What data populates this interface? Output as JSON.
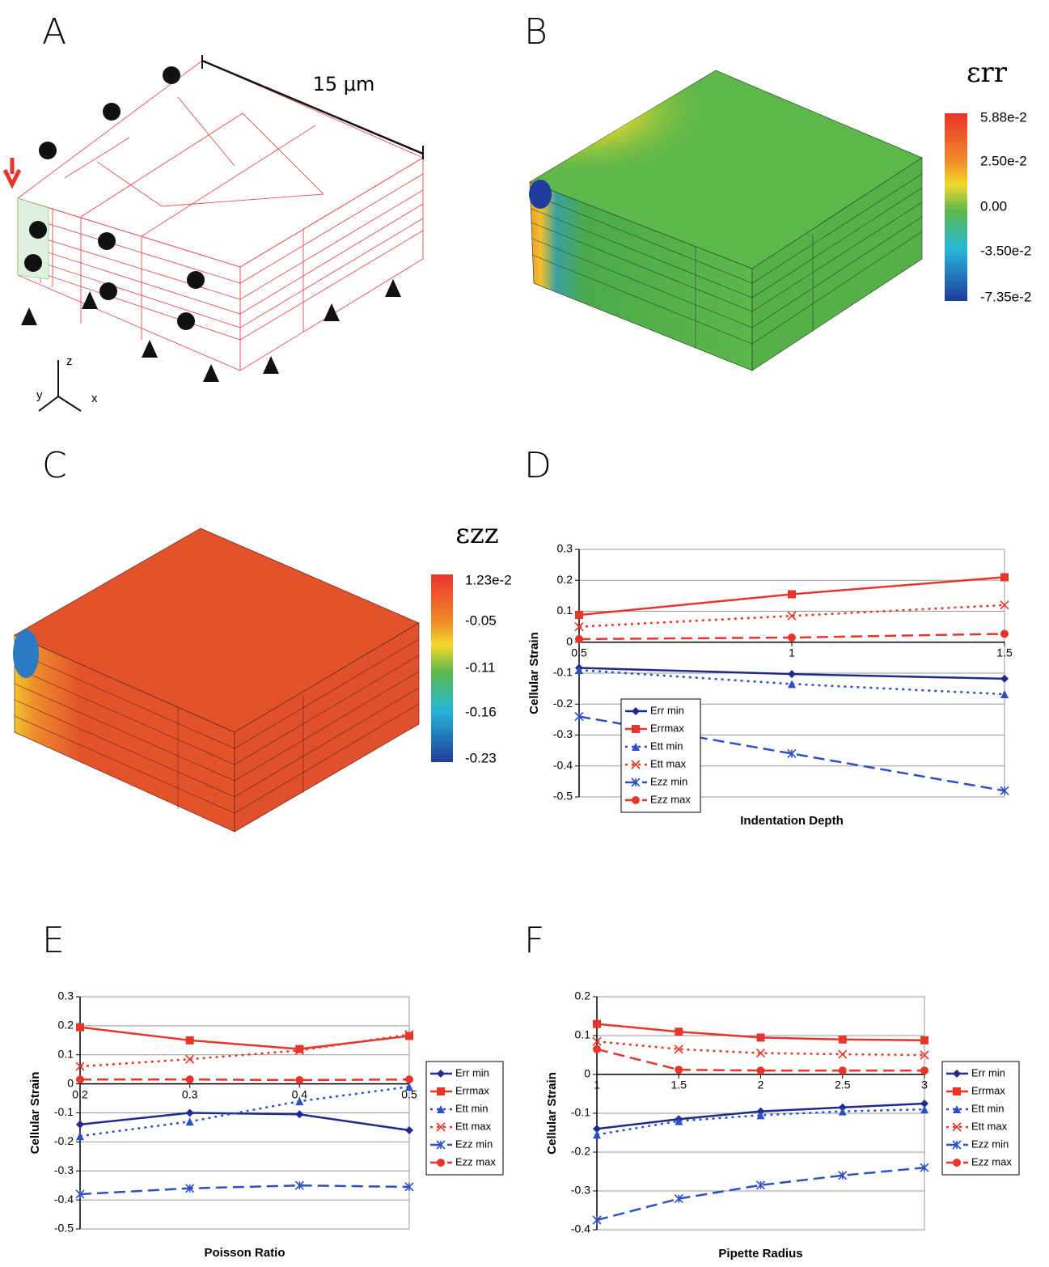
{
  "panels": [
    {
      "label": "A",
      "dimension": "15 μm",
      "axes": [
        "z",
        "y",
        "x"
      ]
    },
    {
      "label": "B",
      "colorbar": {
        "title": "εrr",
        "labels": [
          "5.88e-2",
          "2.50e-2",
          "0.00",
          "-3.50e-2",
          "-7.35e-2"
        ]
      }
    },
    {
      "label": "C",
      "colorbar": {
        "title": "εzz",
        "labels": [
          "1.23e-2",
          "-0.05",
          "-0.11",
          "-0.16",
          "-0.23"
        ]
      }
    }
  ],
  "chart_data": [
    {
      "type": "line",
      "panel_label": "D",
      "x_label": "Indentation Depth",
      "y_label": "Cellular Strain",
      "x": [
        0.5,
        1,
        1.5
      ],
      "xlim": [
        0.5,
        1.5
      ],
      "xticks": [
        0.5,
        1,
        1.5
      ],
      "ylim": [
        -0.5,
        0.3
      ],
      "yticks": [
        -0.5,
        -0.4,
        -0.3,
        -0.2,
        -0.1,
        0,
        0.1,
        0.2,
        0.3
      ],
      "grid": true,
      "legend": "lower left",
      "series": [
        {
          "name": "Err min",
          "color": "#1f2a8c",
          "dash": "solid",
          "marker": "diamond",
          "values": [
            -0.083,
            -0.103,
            -0.118
          ]
        },
        {
          "name": "Errmax",
          "color": "#e8352a",
          "dash": "solid",
          "marker": "square",
          "values": [
            0.088,
            0.155,
            0.21
          ]
        },
        {
          "name": "Ett min",
          "color": "#2d4fc4",
          "dash": "dot",
          "marker": "triangle",
          "values": [
            -0.09,
            -0.135,
            -0.168
          ]
        },
        {
          "name": "Ett max",
          "color": "#e8352a",
          "dash": "dot",
          "marker": "x",
          "values": [
            0.05,
            0.085,
            0.12
          ]
        },
        {
          "name": "Ezz min",
          "color": "#2d4fc4",
          "dash": "dash",
          "marker": "star",
          "values": [
            -0.24,
            -0.36,
            -0.48
          ]
        },
        {
          "name": "Ezz max",
          "color": "#e8352a",
          "dash": "dash",
          "marker": "circle",
          "values": [
            0.01,
            0.015,
            0.027
          ]
        }
      ]
    },
    {
      "type": "line",
      "panel_label": "E",
      "x_label": "Poisson Ratio",
      "y_label": "Cellular Strain",
      "x": [
        0.2,
        0.3,
        0.4,
        0.5
      ],
      "xlim": [
        0.2,
        0.5
      ],
      "xticks": [
        0.2,
        0.3,
        0.4,
        0.5
      ],
      "ylim": [
        -0.5,
        0.3
      ],
      "yticks": [
        -0.5,
        -0.4,
        -0.3,
        -0.2,
        -0.1,
        0,
        0.1,
        0.2,
        0.3
      ],
      "grid": true,
      "legend": "right",
      "series": [
        {
          "name": "Err min",
          "color": "#1f2a8c",
          "dash": "solid",
          "marker": "diamond",
          "values": [
            -0.14,
            -0.1,
            -0.105,
            -0.16
          ]
        },
        {
          "name": "Errmax",
          "color": "#e8352a",
          "dash": "solid",
          "marker": "square",
          "values": [
            0.195,
            0.15,
            0.12,
            0.165
          ]
        },
        {
          "name": "Ett min",
          "color": "#2d4fc4",
          "dash": "dot",
          "marker": "triangle",
          "values": [
            -0.18,
            -0.13,
            -0.06,
            -0.01
          ]
        },
        {
          "name": "Ett max",
          "color": "#e8352a",
          "dash": "dot",
          "marker": "x",
          "values": [
            0.06,
            0.085,
            0.115,
            0.17
          ]
        },
        {
          "name": "Ezz min",
          "color": "#2d4fc4",
          "dash": "dash",
          "marker": "star",
          "values": [
            -0.38,
            -0.36,
            -0.35,
            -0.355
          ]
        },
        {
          "name": "Ezz max",
          "color": "#e8352a",
          "dash": "dash",
          "marker": "circle",
          "values": [
            0.015,
            0.015,
            0.013,
            0.015
          ]
        }
      ]
    },
    {
      "type": "line",
      "panel_label": "F",
      "x_label": "Pipette Radius",
      "y_label": "Cellular Strain",
      "x": [
        1,
        1.5,
        2,
        2.5,
        3
      ],
      "xlim": [
        1,
        3
      ],
      "xticks": [
        1,
        1.5,
        2,
        2.5,
        3
      ],
      "ylim": [
        -0.4,
        0.2
      ],
      "yticks": [
        -0.4,
        -0.3,
        -0.2,
        -0.1,
        0,
        0.1,
        0.2
      ],
      "grid": true,
      "legend": "right",
      "series": [
        {
          "name": "Err min",
          "color": "#1f2a8c",
          "dash": "solid",
          "marker": "diamond",
          "values": [
            -0.14,
            -0.115,
            -0.095,
            -0.085,
            -0.075
          ]
        },
        {
          "name": "Errmax",
          "color": "#e8352a",
          "dash": "solid",
          "marker": "square",
          "values": [
            0.13,
            0.11,
            0.095,
            0.09,
            0.088
          ]
        },
        {
          "name": "Ett min",
          "color": "#2d4fc4",
          "dash": "dot",
          "marker": "triangle",
          "values": [
            -0.155,
            -0.12,
            -0.105,
            -0.095,
            -0.09
          ]
        },
        {
          "name": "Ett max",
          "color": "#e8352a",
          "dash": "dot",
          "marker": "x",
          "values": [
            0.085,
            0.065,
            0.055,
            0.052,
            0.05
          ]
        },
        {
          "name": "Ezz min",
          "color": "#2d4fc4",
          "dash": "dash",
          "marker": "star",
          "values": [
            -0.375,
            -0.32,
            -0.285,
            -0.26,
            -0.24
          ]
        },
        {
          "name": "Ezz max",
          "color": "#e8352a",
          "dash": "dash",
          "marker": "circle",
          "values": [
            0.065,
            0.012,
            0.01,
            0.01,
            0.01
          ]
        }
      ]
    }
  ]
}
